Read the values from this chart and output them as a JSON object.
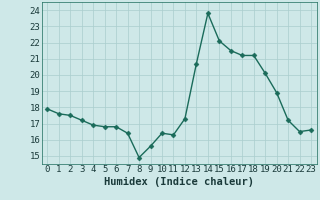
{
  "x": [
    0,
    1,
    2,
    3,
    4,
    5,
    6,
    7,
    8,
    9,
    10,
    11,
    12,
    13,
    14,
    15,
    16,
    17,
    18,
    19,
    20,
    21,
    22,
    23
  ],
  "y": [
    17.9,
    17.6,
    17.5,
    17.2,
    16.9,
    16.8,
    16.8,
    16.4,
    14.9,
    15.6,
    16.4,
    16.3,
    17.3,
    20.7,
    23.8,
    22.1,
    21.5,
    21.2,
    21.2,
    20.1,
    18.9,
    17.2,
    16.5,
    16.6
  ],
  "bg_color": "#cee8e8",
  "line_color": "#1a6b5a",
  "marker_color": "#1a6b5a",
  "grid_color": "#aacece",
  "xlabel": "Humidex (Indice chaleur)",
  "ylim": [
    14.5,
    24.5
  ],
  "xlim": [
    -0.5,
    23.5
  ],
  "yticks": [
    15,
    16,
    17,
    18,
    19,
    20,
    21,
    22,
    23,
    24
  ],
  "xticks": [
    0,
    1,
    2,
    3,
    4,
    5,
    6,
    7,
    8,
    9,
    10,
    11,
    12,
    13,
    14,
    15,
    16,
    17,
    18,
    19,
    20,
    21,
    22,
    23
  ],
  "tick_label_size": 6.5,
  "xlabel_size": 7.5,
  "line_width": 1.0,
  "marker_size": 2.5
}
